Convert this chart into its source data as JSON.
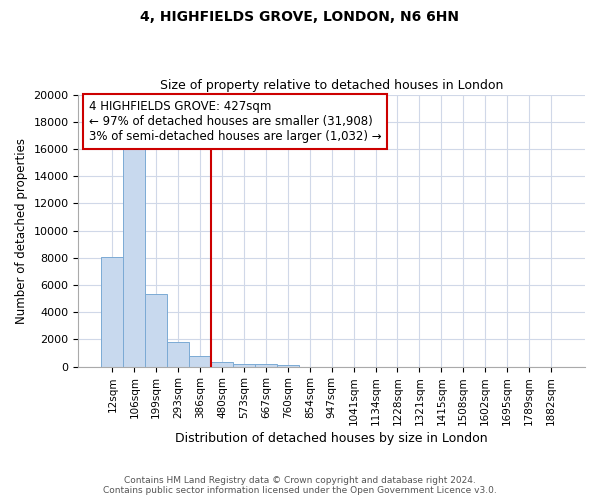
{
  "title1": "4, HIGHFIELDS GROVE, LONDON, N6 6HN",
  "title2": "Size of property relative to detached houses in London",
  "xlabel": "Distribution of detached houses by size in London",
  "ylabel": "Number of detached properties",
  "categories": [
    "12sqm",
    "106sqm",
    "199sqm",
    "293sqm",
    "386sqm",
    "480sqm",
    "573sqm",
    "667sqm",
    "760sqm",
    "854sqm",
    "947sqm",
    "1041sqm",
    "1134sqm",
    "1228sqm",
    "1321sqm",
    "1415sqm",
    "1508sqm",
    "1602sqm",
    "1695sqm",
    "1789sqm",
    "1882sqm"
  ],
  "bar_heights": [
    8050,
    16500,
    5300,
    1800,
    800,
    350,
    200,
    200,
    150,
    0,
    0,
    0,
    0,
    0,
    0,
    0,
    0,
    0,
    0,
    0,
    0
  ],
  "bar_color": "#c8d9ee",
  "bar_edge_color": "#7baad4",
  "property_line_index": 4.5,
  "annotation_text": "4 HIGHFIELDS GROVE: 427sqm\n← 97% of detached houses are smaller (31,908)\n3% of semi-detached houses are larger (1,032) →",
  "annotation_box_color": "#ffffff",
  "annotation_box_edge": "#cc0000",
  "line_color": "#cc0000",
  "ylim": [
    0,
    20000
  ],
  "yticks": [
    0,
    2000,
    4000,
    6000,
    8000,
    10000,
    12000,
    14000,
    16000,
    18000,
    20000
  ],
  "footnote": "Contains HM Land Registry data © Crown copyright and database right 2024.\nContains public sector information licensed under the Open Government Licence v3.0.",
  "bg_color": "#ffffff",
  "plot_bg_color": "#ffffff",
  "grid_color": "#d0d8e8"
}
